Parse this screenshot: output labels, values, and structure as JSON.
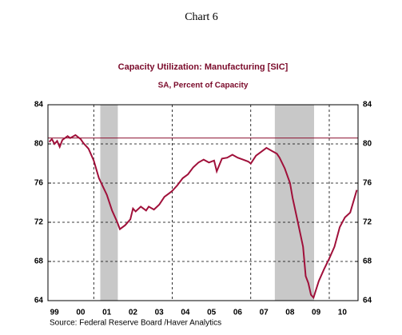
{
  "chart_data": {
    "type": "line",
    "header": "Chart 6",
    "title": "Capacity Utilization: Manufacturing [SIC]",
    "subtitle": "SA, Percent of Capacity",
    "source": "Source:  Federal Reserve Board /Haver Analytics",
    "xlim": [
      1999.25,
      2011.1
    ],
    "ylim": [
      64,
      84
    ],
    "yticks": [
      64,
      68,
      72,
      76,
      80,
      84
    ],
    "xticks": [
      {
        "value": 1999.5,
        "label": "99"
      },
      {
        "value": 2000.5,
        "label": "00"
      },
      {
        "value": 2001.5,
        "label": "01"
      },
      {
        "value": 2002.5,
        "label": "02"
      },
      {
        "value": 2003.5,
        "label": "03"
      },
      {
        "value": 2004.5,
        "label": "04"
      },
      {
        "value": 2005.5,
        "label": "05"
      },
      {
        "value": 2006.5,
        "label": "06"
      },
      {
        "value": 2007.5,
        "label": "07"
      },
      {
        "value": 2008.5,
        "label": "08"
      },
      {
        "value": 2009.5,
        "label": "09"
      },
      {
        "value": 2010.5,
        "label": "10"
      }
    ],
    "xgrid": [
      2001,
      2004,
      2007,
      2010
    ],
    "grid": true,
    "shaded": [
      [
        2001.25,
        2001.92
      ],
      [
        2007.92,
        2009.42
      ]
    ],
    "reference_line": {
      "value": 80.6,
      "color": "#8b1030"
    },
    "series": [
      {
        "name": "Capacity Utilization",
        "color": "#a0103a",
        "x": [
          1999.3,
          1999.4,
          1999.5,
          1999.6,
          1999.7,
          1999.8,
          2000.0,
          2000.1,
          2000.3,
          2000.5,
          2000.6,
          2000.8,
          2001.0,
          2001.2,
          2001.5,
          2001.7,
          2001.9,
          2002.0,
          2002.2,
          2002.4,
          2002.5,
          2002.6,
          2002.8,
          2003.0,
          2003.1,
          2003.3,
          2003.5,
          2003.7,
          2003.9,
          2004.0,
          2004.2,
          2004.4,
          2004.6,
          2004.8,
          2005.0,
          2005.2,
          2005.4,
          2005.6,
          2005.7,
          2005.9,
          2006.1,
          2006.3,
          2006.5,
          2006.7,
          2006.9,
          2007.0,
          2007.2,
          2007.4,
          2007.6,
          2007.8,
          2008.0,
          2008.1,
          2008.3,
          2008.5,
          2008.6,
          2008.8,
          2009.0,
          2009.1,
          2009.2,
          2009.3,
          2009.4,
          2009.6,
          2009.8,
          2010.0,
          2010.2,
          2010.4,
          2010.6,
          2010.8,
          2011.0,
          2011.05
        ],
        "values": [
          80.2,
          80.5,
          80.0,
          80.3,
          79.7,
          80.4,
          80.8,
          80.6,
          80.9,
          80.5,
          80.1,
          79.5,
          78.3,
          76.5,
          74.8,
          73.2,
          72.0,
          71.3,
          71.7,
          72.3,
          73.4,
          73.1,
          73.6,
          73.2,
          73.6,
          73.3,
          73.8,
          74.6,
          75.0,
          75.2,
          75.8,
          76.5,
          76.9,
          77.6,
          78.1,
          78.4,
          78.1,
          78.3,
          77.2,
          78.5,
          78.6,
          78.9,
          78.6,
          78.4,
          78.2,
          78.0,
          78.8,
          79.2,
          79.6,
          79.3,
          79.0,
          78.6,
          77.5,
          76.0,
          74.5,
          72.0,
          69.5,
          66.5,
          65.8,
          64.6,
          64.3,
          66.0,
          67.2,
          68.3,
          69.5,
          71.5,
          72.5,
          73.0,
          74.8,
          75.3
        ]
      }
    ]
  }
}
